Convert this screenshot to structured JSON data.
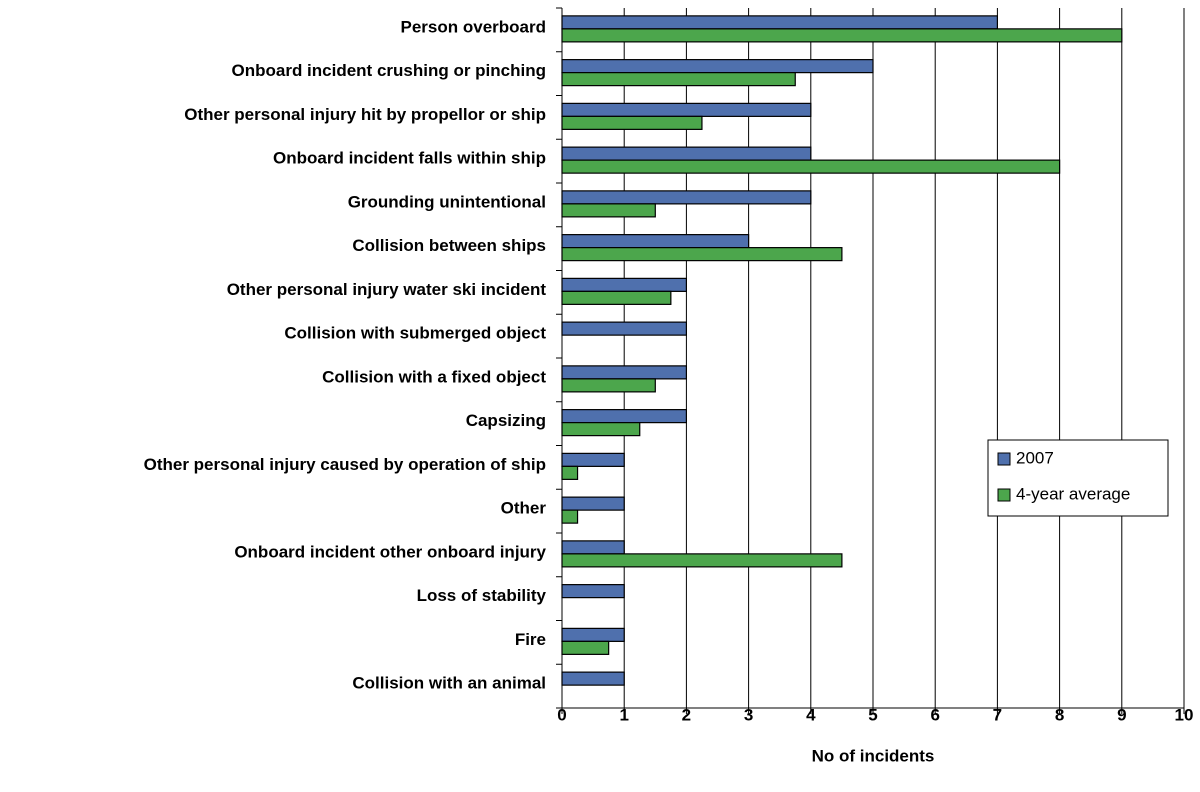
{
  "chart_data": {
    "type": "bar",
    "orientation": "horizontal",
    "x_label": "No of incidents",
    "categories": [
      "Person overboard",
      "Onboard incident crushing or pinching",
      "Other personal injury hit by propellor or ship",
      "Onboard incident falls within ship",
      "Grounding unintentional",
      "Collision between ships",
      "Other personal injury water ski incident",
      "Collision with submerged object",
      "Collision with a fixed object",
      "Capsizing",
      "Other personal injury caused by operation of ship",
      "Other",
      "Onboard incident other onboard injury",
      "Loss of stability",
      "Fire",
      "Collision with an animal"
    ],
    "series": [
      {
        "name": "2007",
        "color": "#4f70ad",
        "values": [
          7,
          5,
          4,
          4,
          4,
          3,
          2,
          2,
          2,
          2,
          1,
          1,
          1,
          1,
          1,
          1
        ]
      },
      {
        "name": "4-year average",
        "color": "#4ca64c",
        "values": [
          9,
          3.75,
          2.25,
          8,
          1.5,
          4.5,
          1.75,
          0,
          1.5,
          1.25,
          0.25,
          0.25,
          4.5,
          0,
          0.75,
          0
        ]
      }
    ],
    "xlim": [
      0,
      10
    ],
    "xticks": [
      0,
      1,
      2,
      3,
      4,
      5,
      6,
      7,
      8,
      9,
      10
    ],
    "grid": true,
    "legend": "right"
  }
}
